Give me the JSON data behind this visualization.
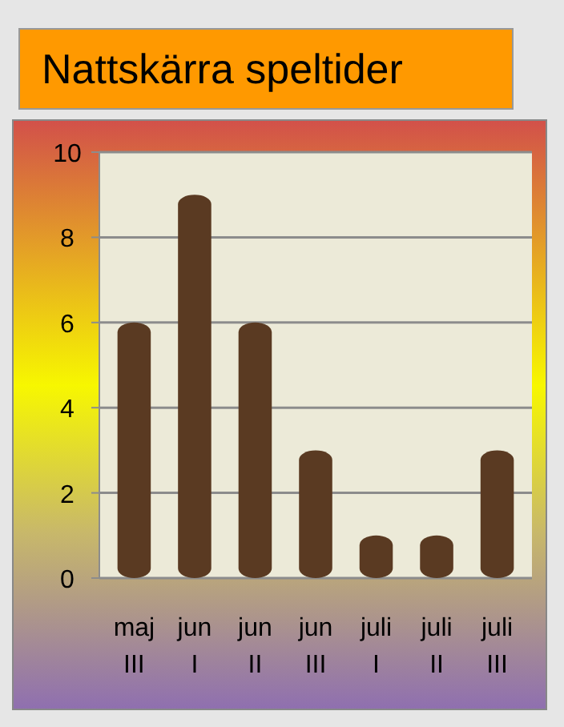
{
  "chart_data": {
    "type": "bar",
    "title": "Nattskärra speltider",
    "categories": [
      "maj III",
      "jun I",
      "jun II",
      "jun III",
      "juli I",
      "juli II",
      "juli III"
    ],
    "values": [
      6,
      9,
      6,
      3,
      1,
      1,
      3
    ],
    "color": "#5a3a22",
    "ylim": [
      0,
      10
    ],
    "yticks": [
      0,
      2,
      4,
      6,
      8,
      10
    ],
    "grid": "y"
  }
}
